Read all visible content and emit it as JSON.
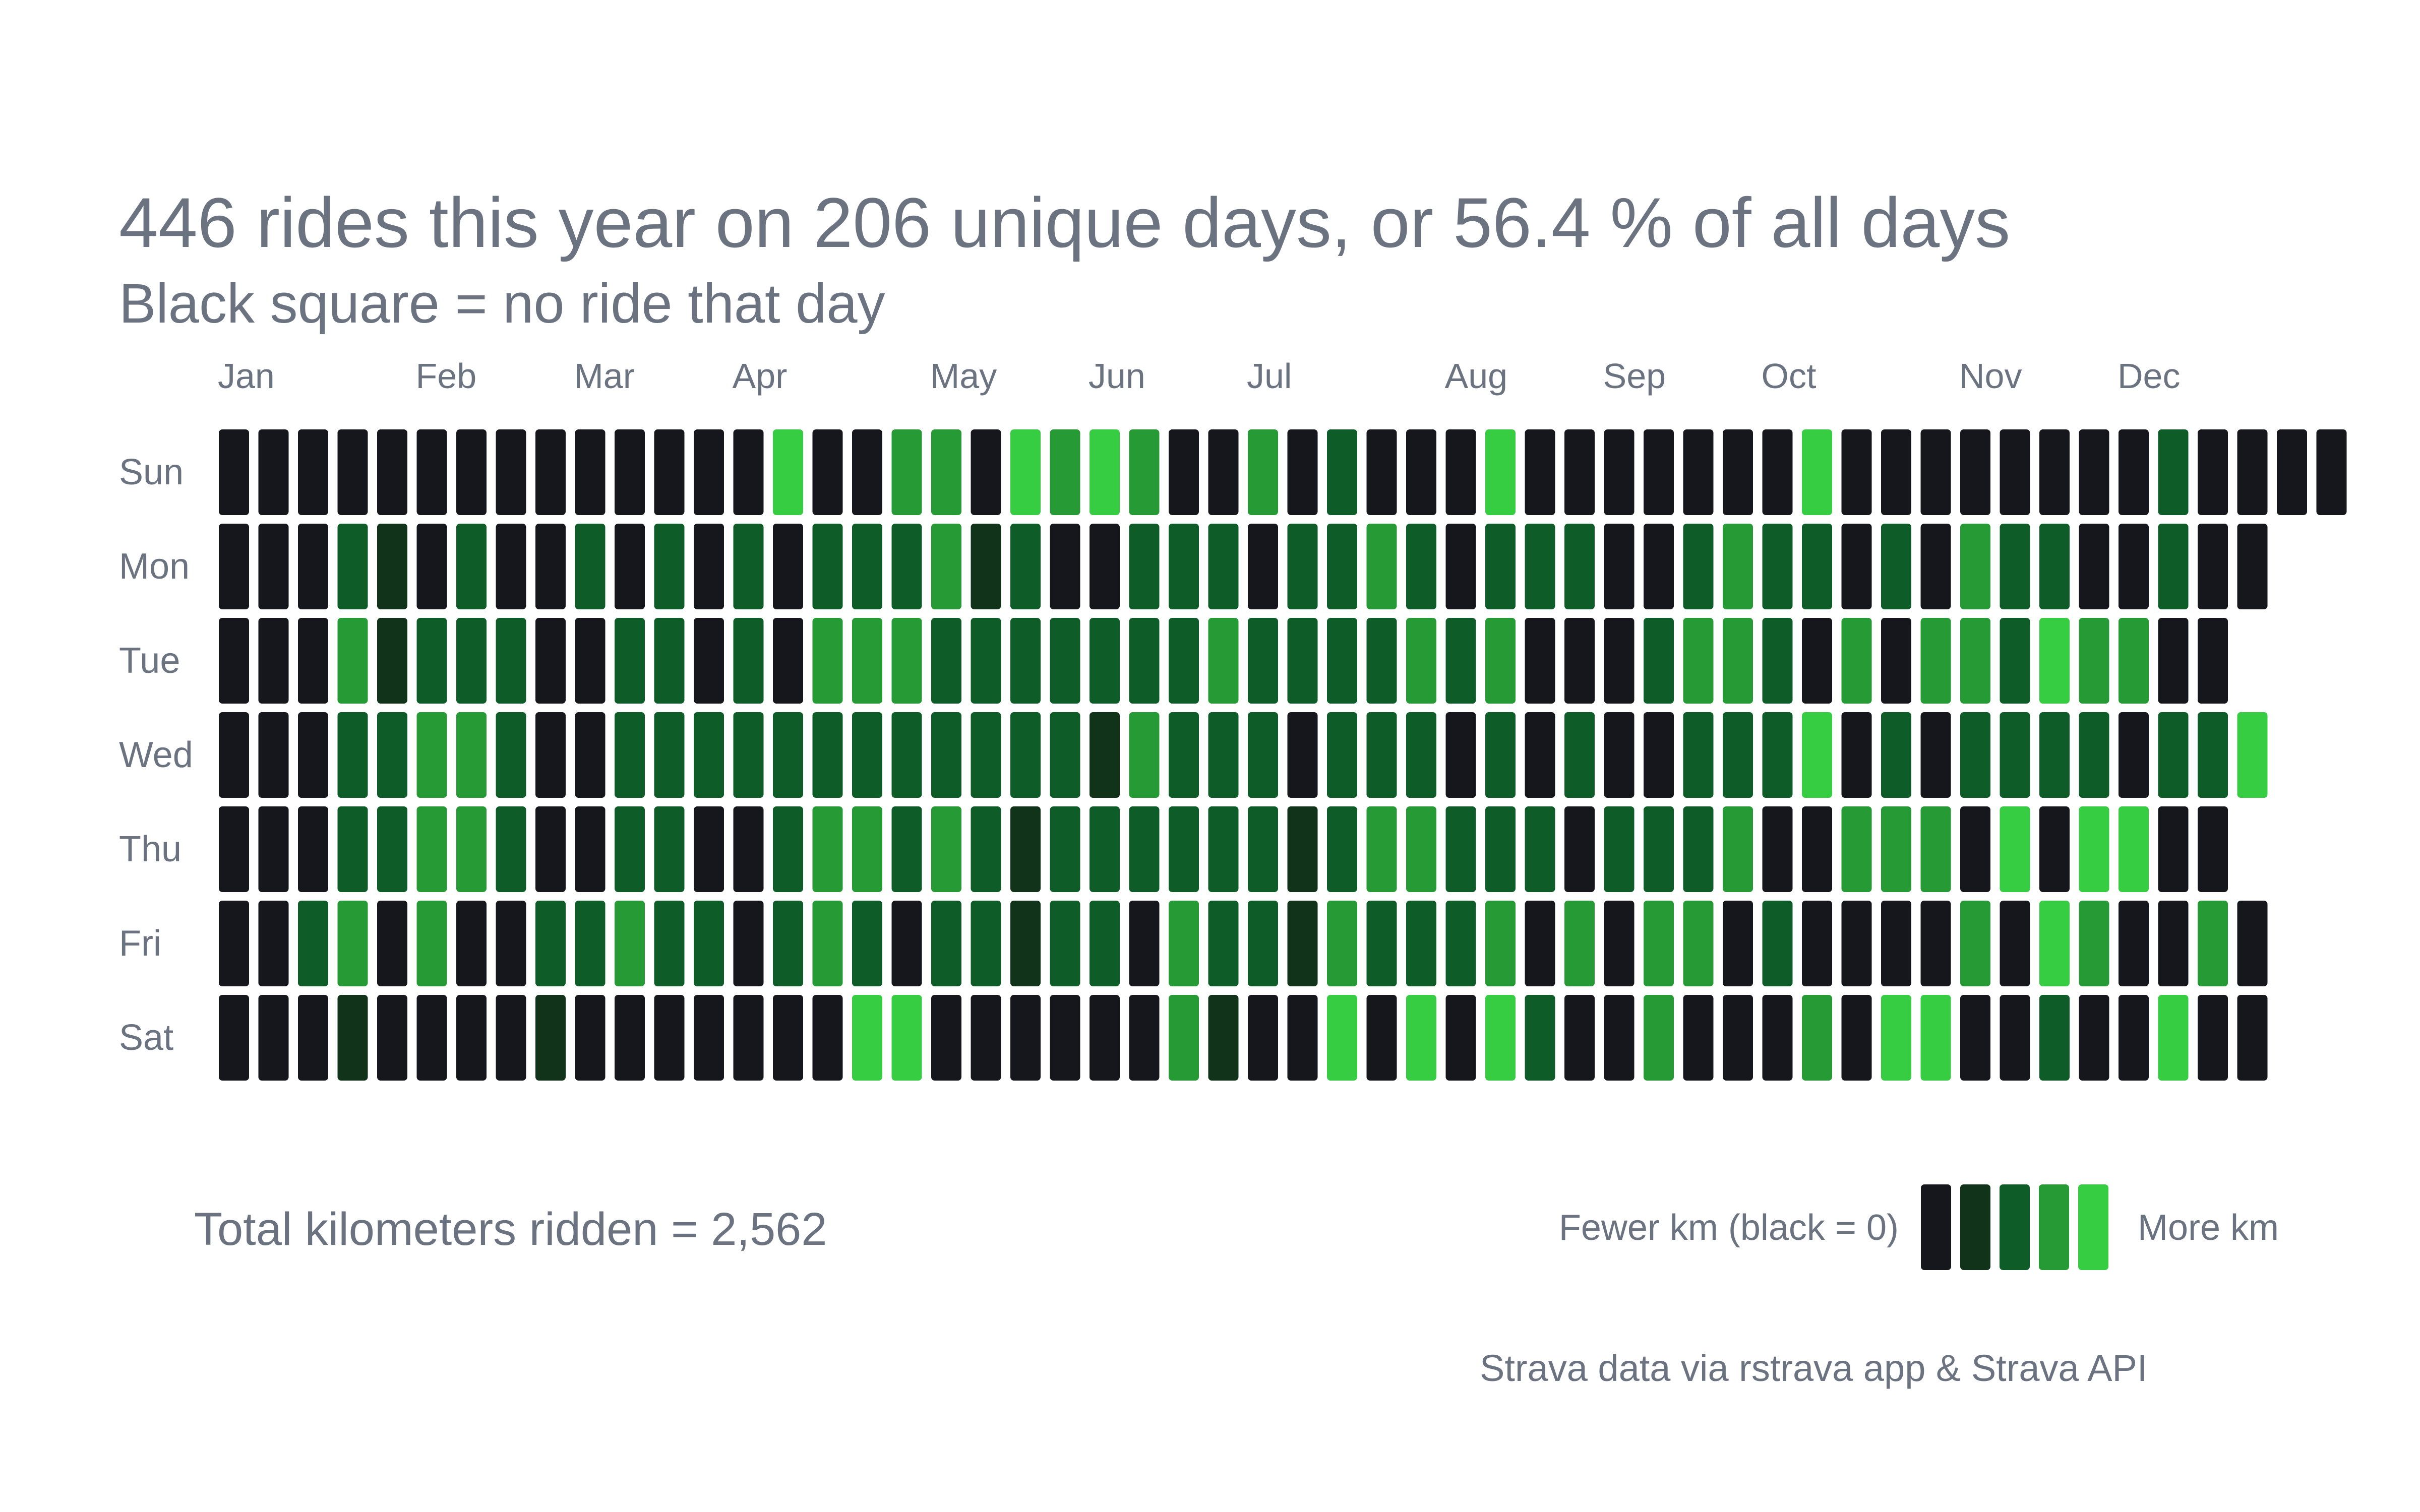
{
  "colors": {
    "text": "#6b7280",
    "levels": [
      "#16171c",
      "#103319",
      "#0e5c28",
      "#269a35",
      "#36cd43"
    ],
    "background": "#ffffff"
  },
  "legend": {
    "fewer_label": "Fewer km (black = 0)",
    "more_label": "More km"
  },
  "footer": {
    "total_label": "Total kilometers ridden = 2,562",
    "source_label": "Strava data via rstrava app & Strava API"
  },
  "chart_data": {
    "type": "heatmap",
    "title": "446 rides this year on 206 unique days, or 56.4 % of all days",
    "subtitle": "Black square = no ride that day",
    "month_labels": [
      {
        "label": "Jan",
        "week": 0
      },
      {
        "label": "Feb",
        "week": 5
      },
      {
        "label": "Mar",
        "week": 9
      },
      {
        "label": "Apr",
        "week": 13
      },
      {
        "label": "May",
        "week": 18
      },
      {
        "label": "Jun",
        "week": 22
      },
      {
        "label": "Jul",
        "week": 26
      },
      {
        "label": "Aug",
        "week": 31
      },
      {
        "label": "Sep",
        "week": 35
      },
      {
        "label": "Oct",
        "week": 39
      },
      {
        "label": "Nov",
        "week": 44
      },
      {
        "label": "Dec",
        "week": 48
      }
    ],
    "day_labels": [
      "Sun",
      "Mon",
      "Tue",
      "Wed",
      "Thu",
      "Fri",
      "Sat"
    ],
    "levels_description": "0 = no ride (black), 4 = most km",
    "grid": [
      [
        0,
        0,
        0,
        0,
        0,
        0,
        0,
        0,
        0,
        0,
        0,
        0,
        0,
        0,
        4,
        0,
        0,
        3,
        3,
        0,
        4,
        3,
        4,
        3,
        0,
        0,
        3,
        0,
        2,
        0,
        0,
        0,
        4,
        0,
        0,
        0,
        0,
        0,
        0,
        0,
        4,
        0,
        0,
        0,
        0,
        0,
        0,
        0,
        0,
        2,
        0,
        0,
        0,
        0
      ],
      [
        0,
        0,
        0,
        2,
        1,
        0,
        2,
        0,
        0,
        2,
        0,
        2,
        0,
        2,
        0,
        2,
        2,
        2,
        3,
        1,
        2,
        0,
        0,
        2,
        2,
        2,
        0,
        2,
        2,
        3,
        2,
        0,
        2,
        2,
        2,
        0,
        0,
        2,
        3,
        2,
        2,
        0,
        2,
        0,
        3,
        2,
        2,
        0,
        0,
        2,
        0,
        0,
        null,
        null
      ],
      [
        0,
        0,
        0,
        3,
        1,
        2,
        2,
        2,
        0,
        0,
        2,
        2,
        0,
        2,
        0,
        3,
        3,
        3,
        2,
        2,
        2,
        2,
        2,
        2,
        2,
        3,
        2,
        2,
        2,
        2,
        3,
        2,
        3,
        0,
        0,
        0,
        2,
        3,
        3,
        2,
        0,
        3,
        0,
        3,
        3,
        2,
        4,
        3,
        3,
        0,
        0,
        null,
        null,
        null
      ],
      [
        0,
        0,
        0,
        2,
        2,
        3,
        3,
        2,
        0,
        0,
        2,
        2,
        2,
        2,
        2,
        2,
        2,
        2,
        2,
        2,
        2,
        2,
        1,
        3,
        2,
        2,
        2,
        0,
        2,
        2,
        2,
        0,
        2,
        0,
        2,
        0,
        0,
        2,
        2,
        2,
        4,
        0,
        2,
        0,
        2,
        2,
        2,
        2,
        0,
        2,
        2,
        4,
        null,
        null
      ],
      [
        0,
        0,
        0,
        2,
        2,
        3,
        3,
        2,
        0,
        0,
        2,
        2,
        0,
        0,
        2,
        3,
        3,
        2,
        3,
        2,
        1,
        2,
        2,
        2,
        2,
        2,
        2,
        1,
        2,
        3,
        3,
        2,
        2,
        2,
        0,
        2,
        2,
        2,
        3,
        0,
        0,
        3,
        3,
        3,
        0,
        4,
        0,
        4,
        4,
        0,
        0,
        null,
        null,
        null
      ],
      [
        0,
        0,
        2,
        3,
        0,
        3,
        0,
        0,
        2,
        2,
        3,
        2,
        2,
        0,
        2,
        3,
        2,
        0,
        2,
        2,
        1,
        2,
        2,
        0,
        3,
        2,
        2,
        1,
        3,
        2,
        2,
        2,
        3,
        0,
        3,
        0,
        3,
        3,
        0,
        2,
        0,
        0,
        0,
        0,
        3,
        0,
        4,
        3,
        0,
        0,
        3,
        0,
        null,
        null
      ],
      [
        0,
        0,
        0,
        1,
        0,
        0,
        0,
        0,
        1,
        0,
        0,
        0,
        0,
        0,
        0,
        0,
        4,
        4,
        0,
        0,
        0,
        0,
        0,
        0,
        3,
        1,
        0,
        0,
        4,
        0,
        4,
        0,
        4,
        2,
        0,
        0,
        3,
        0,
        0,
        0,
        3,
        0,
        4,
        4,
        0,
        0,
        2,
        0,
        0,
        4,
        0,
        0,
        null,
        null
      ]
    ]
  }
}
